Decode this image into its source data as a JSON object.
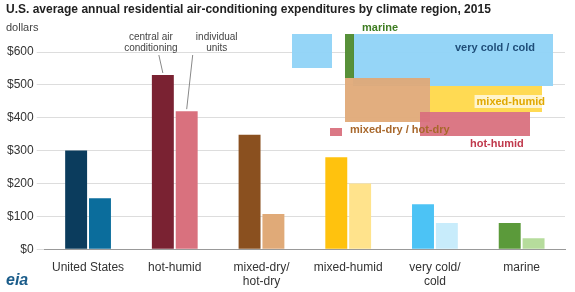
{
  "chart_data": {
    "type": "bar",
    "title": "U.S. average annual residential air-conditioning expenditures by climate region, 2015",
    "y_label": "dollars",
    "categories": [
      "United States",
      "hot-humid",
      [
        "mixed-dry/",
        "hot-dry"
      ],
      "mixed-humid",
      [
        "very cold/",
        "cold"
      ],
      "marine"
    ],
    "series": [
      {
        "name": "central air conditioning",
        "colors": [
          "#0b3c5d",
          "#7a2232",
          "#8a501f",
          "#ffc20e",
          "#4cc3f5",
          "#5b9a3a"
        ],
        "values": [
          300,
          530,
          348,
          280,
          137,
          80
        ]
      },
      {
        "name": "individual units",
        "colors": [
          "#0b6d9c",
          "#d9717e",
          "#e0aa78",
          "#ffe38c",
          "#c8ecfb",
          "#b6dc9c"
        ],
        "values": [
          155,
          420,
          107,
          200,
          80,
          33
        ]
      }
    ],
    "ylim": [
      0,
      600
    ],
    "yticks": [
      {
        "value": 0,
        "label": "$0"
      },
      {
        "value": 100,
        "label": "$100"
      },
      {
        "value": 200,
        "label": "$200"
      },
      {
        "value": 300,
        "label": "$300"
      },
      {
        "value": 400,
        "label": "$400"
      },
      {
        "value": 500,
        "label": "$500"
      },
      {
        "value": 600,
        "label": "$600"
      }
    ],
    "grid": true,
    "annotations": [
      {
        "text": "marine",
        "color": "#3f7d22"
      },
      {
        "text": "very cold / cold",
        "color": "#1f4e79"
      },
      {
        "text": "mixed-humid",
        "color": "#e0a800"
      },
      {
        "text": "mixed-dry / hot-dry",
        "color": "#a8682c"
      },
      {
        "text": "hot-humid",
        "color": "#c0394c"
      }
    ],
    "logo": "eia"
  }
}
